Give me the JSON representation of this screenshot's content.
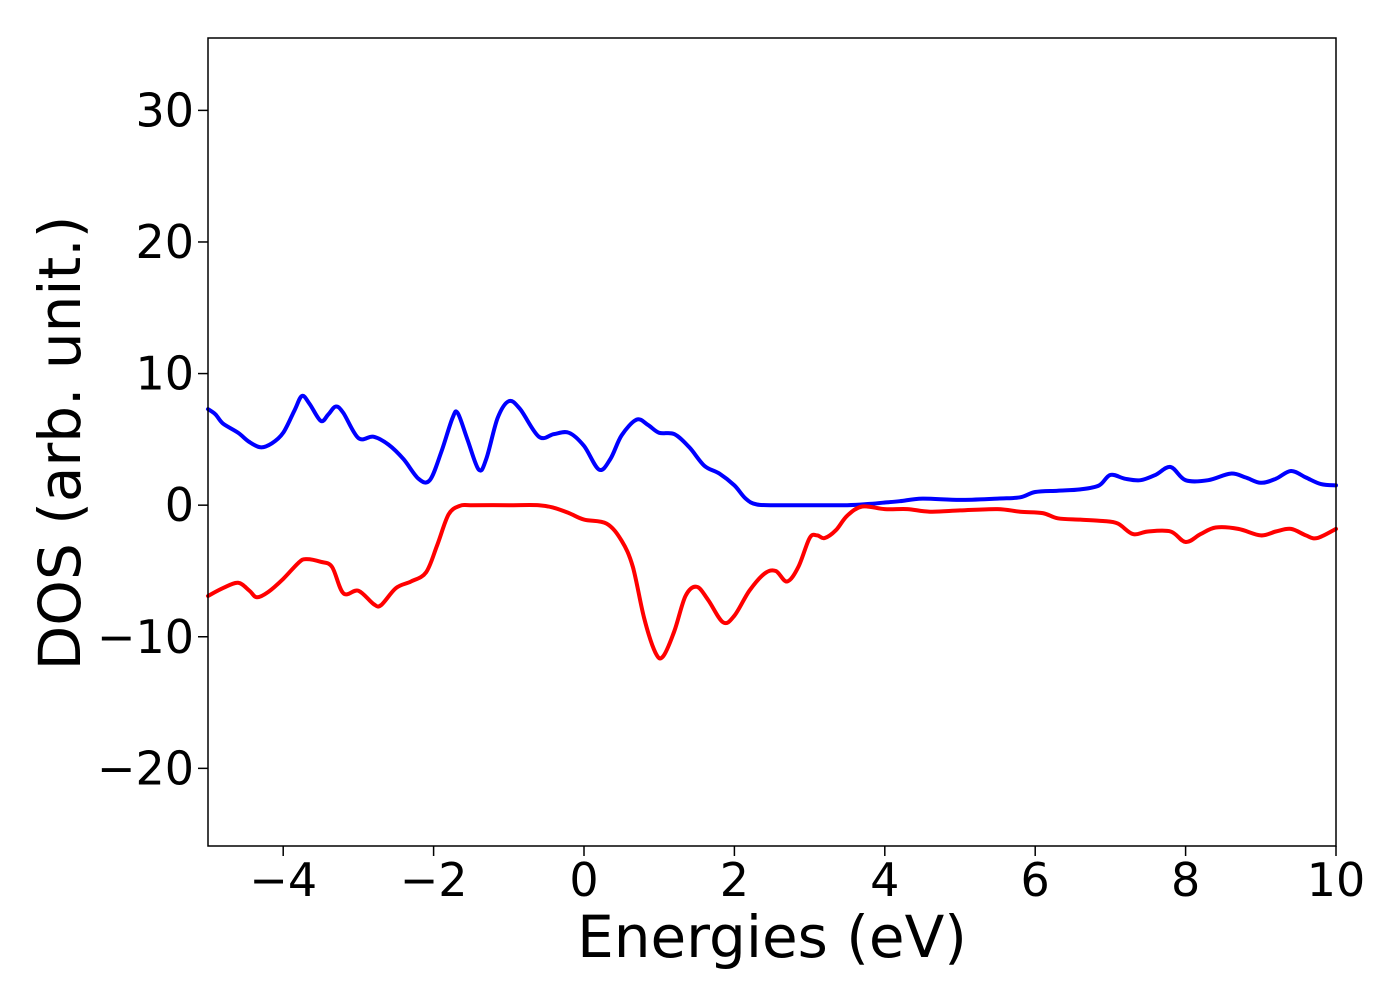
{
  "chart_data": {
    "type": "line",
    "title": "",
    "xlabel": "Energies (eV)",
    "ylabel": "DOS (arb. unit.)",
    "xlim": [
      -5,
      10
    ],
    "ylim": [
      -25.9,
      35.5
    ],
    "grid": false,
    "legend": "none",
    "x_ticks": [
      {
        "value": -4,
        "label": "−4"
      },
      {
        "value": -2,
        "label": "−2"
      },
      {
        "value": 0,
        "label": "0"
      },
      {
        "value": 2,
        "label": "2"
      },
      {
        "value": 4,
        "label": "4"
      },
      {
        "value": 6,
        "label": "6"
      },
      {
        "value": 8,
        "label": "8"
      },
      {
        "value": 10,
        "label": "10"
      }
    ],
    "y_ticks": [
      {
        "value": -20,
        "label": "−20"
      },
      {
        "value": -10,
        "label": "−10"
      },
      {
        "value": 0,
        "label": "0"
      },
      {
        "value": 10,
        "label": "10"
      },
      {
        "value": 20,
        "label": "20"
      },
      {
        "value": 30,
        "label": "30"
      }
    ],
    "series": [
      {
        "color": "#0000ff",
        "points": [
          [
            -5.0,
            7.3
          ],
          [
            -4.9,
            6.9
          ],
          [
            -4.8,
            6.2
          ],
          [
            -4.6,
            5.5
          ],
          [
            -4.45,
            4.8
          ],
          [
            -4.3,
            4.4
          ],
          [
            -4.15,
            4.7
          ],
          [
            -4.0,
            5.5
          ],
          [
            -3.85,
            7.2
          ],
          [
            -3.75,
            8.3
          ],
          [
            -3.65,
            7.7
          ],
          [
            -3.5,
            6.4
          ],
          [
            -3.4,
            6.9
          ],
          [
            -3.3,
            7.5
          ],
          [
            -3.2,
            7.0
          ],
          [
            -3.0,
            5.1
          ],
          [
            -2.8,
            5.2
          ],
          [
            -2.6,
            4.6
          ],
          [
            -2.4,
            3.5
          ],
          [
            -2.2,
            2.0
          ],
          [
            -2.05,
            1.9
          ],
          [
            -1.9,
            4.0
          ],
          [
            -1.75,
            6.6
          ],
          [
            -1.68,
            7.0
          ],
          [
            -1.55,
            5.0
          ],
          [
            -1.4,
            2.7
          ],
          [
            -1.3,
            3.5
          ],
          [
            -1.15,
            6.6
          ],
          [
            -1.0,
            7.9
          ],
          [
            -0.85,
            7.3
          ],
          [
            -0.6,
            5.2
          ],
          [
            -0.4,
            5.4
          ],
          [
            -0.2,
            5.5
          ],
          [
            0.0,
            4.5
          ],
          [
            0.2,
            2.7
          ],
          [
            0.35,
            3.5
          ],
          [
            0.5,
            5.3
          ],
          [
            0.7,
            6.5
          ],
          [
            0.85,
            6.1
          ],
          [
            1.0,
            5.5
          ],
          [
            1.2,
            5.4
          ],
          [
            1.4,
            4.4
          ],
          [
            1.6,
            3.0
          ],
          [
            1.8,
            2.4
          ],
          [
            2.0,
            1.5
          ],
          [
            2.15,
            0.5
          ],
          [
            2.3,
            0.05
          ],
          [
            2.6,
            0.0
          ],
          [
            3.0,
            0.0
          ],
          [
            3.5,
            0.0
          ],
          [
            3.8,
            0.1
          ],
          [
            4.0,
            0.2
          ],
          [
            4.2,
            0.3
          ],
          [
            4.5,
            0.5
          ],
          [
            5.0,
            0.4
          ],
          [
            5.5,
            0.5
          ],
          [
            5.8,
            0.6
          ],
          [
            6.0,
            1.0
          ],
          [
            6.3,
            1.1
          ],
          [
            6.6,
            1.2
          ],
          [
            6.85,
            1.5
          ],
          [
            7.0,
            2.3
          ],
          [
            7.2,
            2.0
          ],
          [
            7.4,
            1.9
          ],
          [
            7.6,
            2.3
          ],
          [
            7.8,
            2.9
          ],
          [
            8.0,
            1.9
          ],
          [
            8.3,
            1.9
          ],
          [
            8.6,
            2.4
          ],
          [
            8.8,
            2.1
          ],
          [
            9.0,
            1.7
          ],
          [
            9.2,
            2.0
          ],
          [
            9.4,
            2.6
          ],
          [
            9.6,
            2.1
          ],
          [
            9.8,
            1.6
          ],
          [
            10.0,
            1.5
          ]
        ]
      },
      {
        "color": "#ff0000",
        "points": [
          [
            -5.0,
            -6.9
          ],
          [
            -4.8,
            -6.3
          ],
          [
            -4.6,
            -5.9
          ],
          [
            -4.45,
            -6.5
          ],
          [
            -4.35,
            -7.0
          ],
          [
            -4.2,
            -6.6
          ],
          [
            -4.0,
            -5.6
          ],
          [
            -3.8,
            -4.4
          ],
          [
            -3.7,
            -4.1
          ],
          [
            -3.5,
            -4.3
          ],
          [
            -3.35,
            -4.7
          ],
          [
            -3.2,
            -6.7
          ],
          [
            -3.0,
            -6.5
          ],
          [
            -2.8,
            -7.5
          ],
          [
            -2.7,
            -7.6
          ],
          [
            -2.5,
            -6.3
          ],
          [
            -2.3,
            -5.8
          ],
          [
            -2.1,
            -5.1
          ],
          [
            -1.95,
            -3.0
          ],
          [
            -1.8,
            -0.7
          ],
          [
            -1.65,
            -0.05
          ],
          [
            -1.5,
            0.0
          ],
          [
            -1.0,
            0.0
          ],
          [
            -0.6,
            0.0
          ],
          [
            -0.4,
            -0.2
          ],
          [
            -0.2,
            -0.6
          ],
          [
            0.0,
            -1.1
          ],
          [
            0.3,
            -1.4
          ],
          [
            0.5,
            -2.7
          ],
          [
            0.65,
            -4.7
          ],
          [
            0.8,
            -8.6
          ],
          [
            0.95,
            -11.2
          ],
          [
            1.05,
            -11.5
          ],
          [
            1.2,
            -9.6
          ],
          [
            1.35,
            -6.9
          ],
          [
            1.5,
            -6.2
          ],
          [
            1.65,
            -7.2
          ],
          [
            1.85,
            -8.9
          ],
          [
            2.0,
            -8.4
          ],
          [
            2.2,
            -6.5
          ],
          [
            2.4,
            -5.2
          ],
          [
            2.55,
            -5.0
          ],
          [
            2.7,
            -5.8
          ],
          [
            2.85,
            -4.7
          ],
          [
            3.0,
            -2.5
          ],
          [
            3.1,
            -2.3
          ],
          [
            3.2,
            -2.5
          ],
          [
            3.35,
            -1.9
          ],
          [
            3.5,
            -0.8
          ],
          [
            3.7,
            -0.1
          ],
          [
            4.0,
            -0.3
          ],
          [
            4.3,
            -0.3
          ],
          [
            4.6,
            -0.5
          ],
          [
            5.0,
            -0.4
          ],
          [
            5.5,
            -0.3
          ],
          [
            5.8,
            -0.5
          ],
          [
            6.1,
            -0.6
          ],
          [
            6.3,
            -1.0
          ],
          [
            6.6,
            -1.1
          ],
          [
            6.9,
            -1.2
          ],
          [
            7.1,
            -1.4
          ],
          [
            7.3,
            -2.2
          ],
          [
            7.5,
            -2.0
          ],
          [
            7.8,
            -2.0
          ],
          [
            8.0,
            -2.8
          ],
          [
            8.2,
            -2.2
          ],
          [
            8.4,
            -1.7
          ],
          [
            8.7,
            -1.8
          ],
          [
            9.0,
            -2.3
          ],
          [
            9.2,
            -2.0
          ],
          [
            9.4,
            -1.8
          ],
          [
            9.6,
            -2.3
          ],
          [
            9.75,
            -2.5
          ],
          [
            10.0,
            -1.8
          ]
        ]
      }
    ]
  }
}
